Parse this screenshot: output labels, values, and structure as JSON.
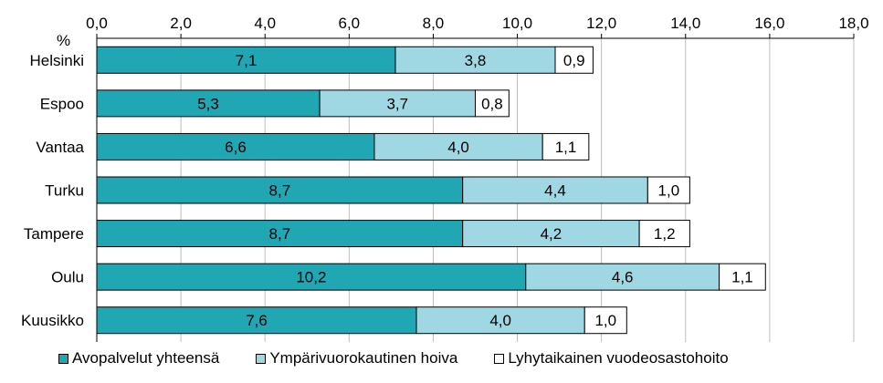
{
  "chart_data": {
    "type": "bar",
    "orientation": "horizontal",
    "stacked": true,
    "unit_label": "%",
    "x_axis_position": "top",
    "xlim": [
      0,
      18
    ],
    "x_ticks": [
      "0,0",
      "2,0",
      "4,0",
      "6,0",
      "8,0",
      "10,0",
      "12,0",
      "14,0",
      "16,0",
      "18,0"
    ],
    "grid": true,
    "categories": [
      "Helsinki",
      "Espoo",
      "Vantaa",
      "Turku",
      "Tampere",
      "Oulu",
      "Kuusikko"
    ],
    "series": [
      {
        "name": "Avopalvelut yhteensä",
        "color": "#21a6b3",
        "values": [
          7.1,
          5.3,
          6.6,
          8.7,
          8.7,
          10.2,
          7.6
        ],
        "labels": [
          "7,1",
          "5,3",
          "6,6",
          "8,7",
          "8,7",
          "10,2",
          "7,6"
        ]
      },
      {
        "name": "Ympärivuorokautinen hoiva",
        "color": "#9fd7e2",
        "values": [
          3.8,
          3.7,
          4.0,
          4.4,
          4.2,
          4.6,
          4.0
        ],
        "labels": [
          "3,8",
          "3,7",
          "4,0",
          "4,4",
          "4,2",
          "4,6",
          "4,0"
        ]
      },
      {
        "name": "Lyhytaikainen vuodeosastohoito",
        "color": "#ffffff",
        "values": [
          0.9,
          0.8,
          1.1,
          1.0,
          1.2,
          1.1,
          1.0
        ],
        "labels": [
          "0,9",
          "0,8",
          "1,1",
          "1,0",
          "1,2",
          "1,1",
          "1,0"
        ]
      }
    ],
    "legend_position": "bottom"
  }
}
